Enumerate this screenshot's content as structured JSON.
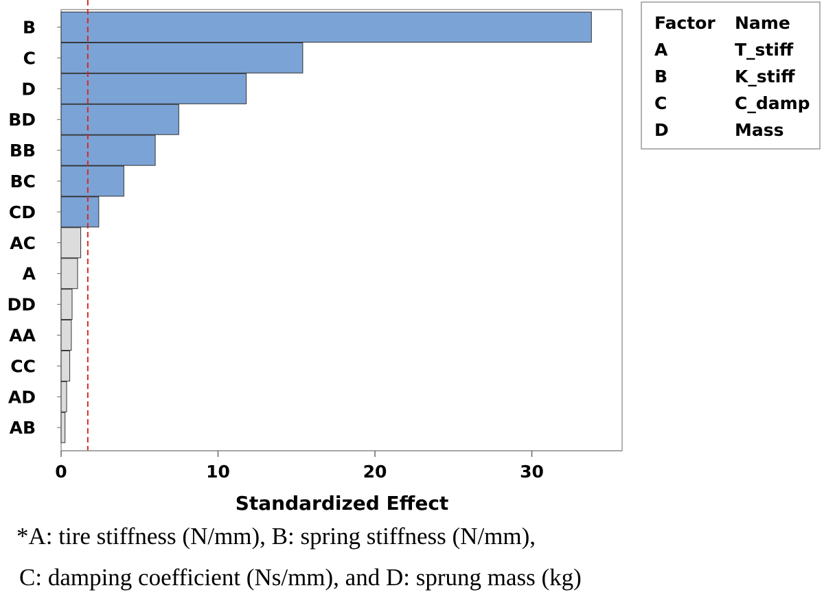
{
  "chart_data": {
    "type": "bar",
    "orientation": "horizontal",
    "title": "",
    "xlabel": "Standardized Effect",
    "ylabel": "",
    "xlim": [
      0,
      36
    ],
    "xticks": [
      "0",
      "10",
      "20",
      "30"
    ],
    "xtick_values": [
      0,
      10,
      20,
      30
    ],
    "reference_line": 1.7,
    "categories": [
      "B",
      "C",
      "D",
      "BD",
      "BB",
      "BC",
      "CD",
      "AC",
      "A",
      "DD",
      "AA",
      "CC",
      "AD",
      "AB"
    ],
    "values": [
      33.8,
      15.4,
      11.8,
      7.5,
      6.0,
      4.0,
      2.4,
      1.25,
      1.05,
      0.7,
      0.65,
      0.55,
      0.35,
      0.25
    ],
    "significant": [
      true,
      true,
      true,
      true,
      true,
      true,
      true,
      false,
      false,
      false,
      false,
      false,
      false,
      false
    ],
    "grid": false,
    "legend_placement": "right",
    "legend": {
      "headers": [
        "Factor",
        "Name"
      ],
      "rows": [
        [
          "A",
          "T_stiff"
        ],
        [
          "B",
          "K_stiff"
        ],
        [
          "C",
          "C_damp"
        ],
        [
          "D",
          "Mass"
        ]
      ]
    }
  },
  "colors": {
    "significant_bar": "#7ba3d6",
    "insignificant_bar": "#dcdcdc",
    "bar_stroke": "#333333",
    "reference_line": "#d62828",
    "frame": "#999999"
  },
  "footnote": {
    "line1": "*A: tire stiffness (N/mm), B: spring stiffness (N/mm),",
    "line2": "C: damping coefficient (Ns/mm), and D: sprung mass (kg)"
  }
}
